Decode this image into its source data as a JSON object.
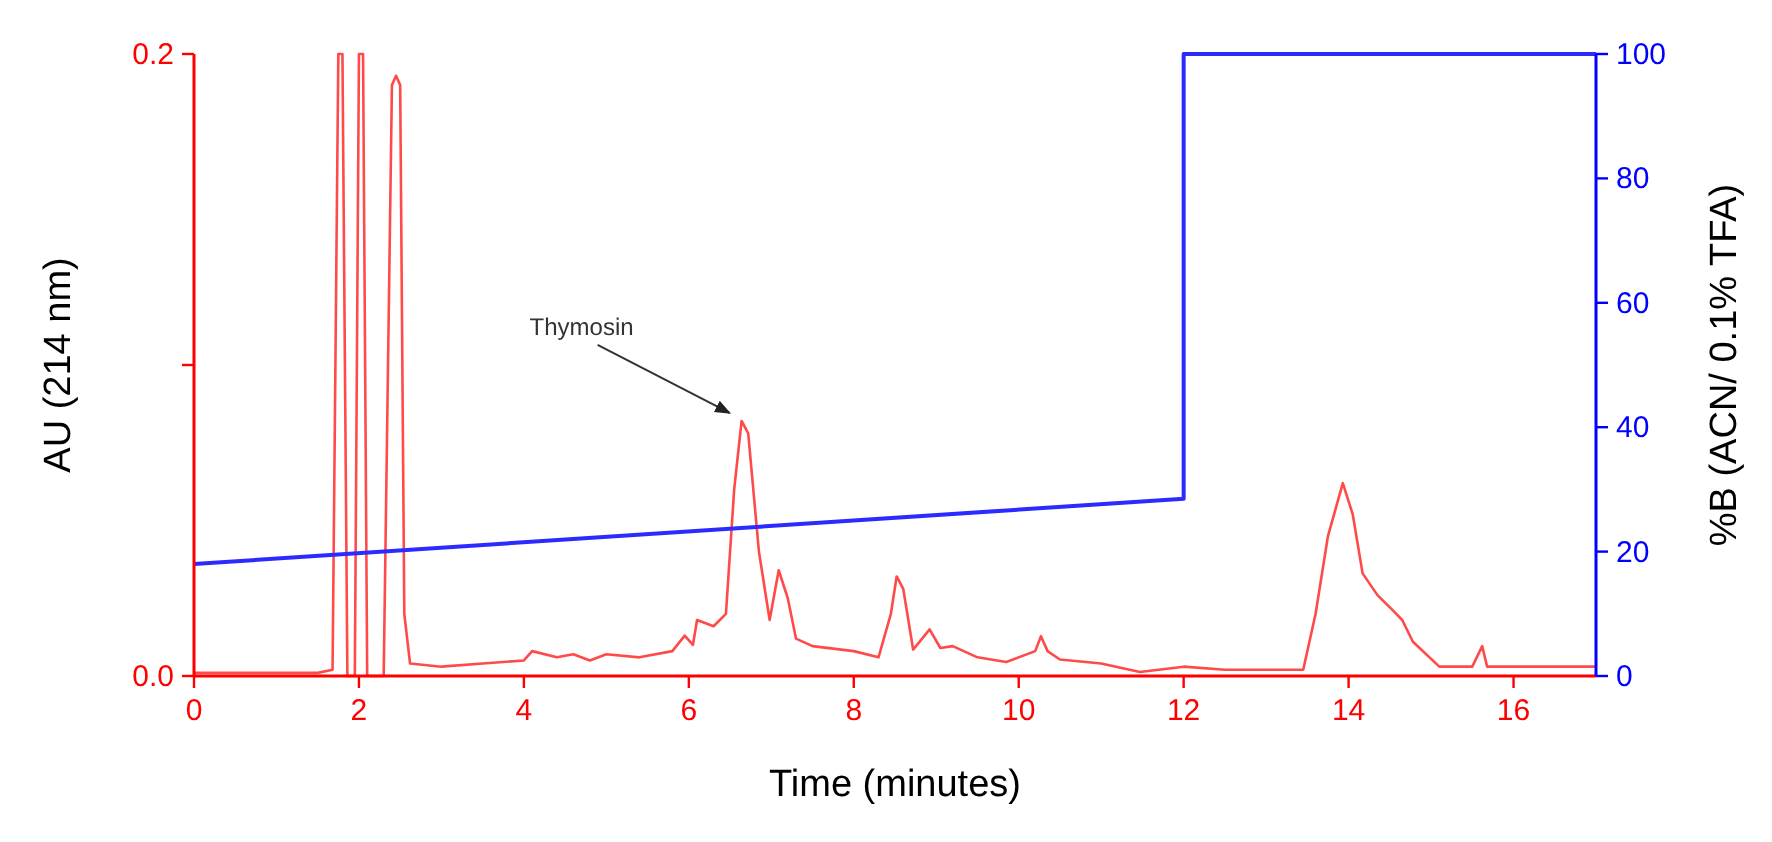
{
  "chart_data": {
    "type": "line",
    "xlabel": "Time (minutes)",
    "ylabel": "AU (214 nm)",
    "y2label": "%B (ACN/ 0.1% TFA)",
    "xlim": [
      0,
      17
    ],
    "xticks": [
      0,
      2,
      4,
      6,
      8,
      10,
      12,
      14,
      16
    ],
    "ylim": [
      0,
      0.2
    ],
    "yticks": [
      {
        "value": 0,
        "label": "0.0"
      },
      {
        "value": 0.1,
        "label": null
      },
      {
        "value": 0.2,
        "label": "0.2"
      }
    ],
    "y2lim": [
      0,
      100
    ],
    "y2ticks": [
      0,
      20,
      40,
      60,
      80,
      100
    ],
    "grid": false,
    "marker": "none",
    "line_style": "solid",
    "annotations": [
      {
        "text": "Thymosin",
        "x": 6.64,
        "y": 0.082
      }
    ],
    "series": [
      {
        "color": "#ff4a4a",
        "x": [
          0,
          1.5,
          1.68,
          1.75,
          1.8,
          1.86,
          1.95,
          2.0,
          2.05,
          2.1,
          2.3,
          2.4,
          2.45,
          2.5,
          2.55,
          2.62,
          3.0,
          3.5,
          4.0,
          4.1,
          4.4,
          4.6,
          4.8,
          5.0,
          5.4,
          5.8,
          5.95,
          6.05,
          6.1,
          6.3,
          6.45,
          6.55,
          6.64,
          6.72,
          6.85,
          6.98,
          7.09,
          7.2,
          7.3,
          7.5,
          8.0,
          8.3,
          8.45,
          8.52,
          8.6,
          8.72,
          8.92,
          9.05,
          9.2,
          9.5,
          9.85,
          10.2,
          10.27,
          10.35,
          10.5,
          11.0,
          11.47,
          12.0,
          12.5,
          13.0,
          13.45,
          13.6,
          13.75,
          13.93,
          14.05,
          14.17,
          14.35,
          14.54,
          14.65,
          14.78,
          15.1,
          15.5,
          15.62,
          15.68,
          16.0,
          17.0
        ],
        "values": [
          0.001,
          0.001,
          0.002,
          0.2,
          0.2,
          0.0,
          0.0,
          0.2,
          0.2,
          0.0,
          0.0,
          0.19,
          0.193,
          0.19,
          0.02,
          0.004,
          0.003,
          0.004,
          0.005,
          0.008,
          0.006,
          0.007,
          0.005,
          0.007,
          0.006,
          0.008,
          0.013,
          0.01,
          0.018,
          0.016,
          0.02,
          0.06,
          0.082,
          0.078,
          0.04,
          0.018,
          0.034,
          0.025,
          0.012,
          0.0096,
          0.008,
          0.006,
          0.02,
          0.032,
          0.028,
          0.0085,
          0.015,
          0.009,
          0.0096,
          0.006,
          0.0045,
          0.008,
          0.0128,
          0.008,
          0.0053,
          0.004,
          0.0013,
          0.003,
          0.002,
          0.002,
          0.002,
          0.02,
          0.045,
          0.062,
          0.052,
          0.033,
          0.026,
          0.021,
          0.018,
          0.011,
          0.003,
          0.003,
          0.0096,
          0.003,
          0.003,
          0.003
        ]
      },
      {
        "color": "#2b2bff",
        "axis": "y2",
        "x": [
          0,
          12,
          12,
          17
        ],
        "values": [
          18,
          28.5,
          100,
          100
        ]
      }
    ]
  }
}
